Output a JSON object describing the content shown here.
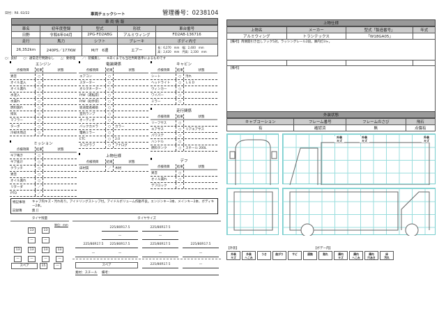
{
  "header": {
    "date": "日付：R6. 02/22",
    "title": "車両チェックシート",
    "mgmt_no": "管理番号：0238104"
  },
  "vehicle": {
    "title": "車 両 情 報",
    "h1": [
      "車名",
      "初年度登録",
      "型式",
      "形状",
      "車台番号"
    ],
    "r1": [
      "日野",
      "令和6年04月",
      "2PG-FD2ABG",
      "アルミウィング",
      "FD2AB-136716"
    ],
    "h2": [
      "走行",
      "馬力",
      "シフト",
      "ブレーキ",
      "ボディ内寸"
    ],
    "r2": [
      "26,352km",
      "240PS／177KW",
      "M/T　6速",
      "エアー"
    ],
    "dims": [
      "長：6,270　mm　幅：2,400　mm",
      "高：2,420　mm　門高：2,330　mm"
    ]
  },
  "legend_text": "○：良好　　○：通常走行問題なし　　△：要修理　　／：装備無し　　※あくまでも当社判断基準によるものです",
  "col_headers": [
    "点検項目",
    "結果",
    "状態"
  ],
  "sections": {
    "engine": {
      "title": "エンジン",
      "items": [
        [
          "異音",
          "○",
          ""
        ],
        [
          "オイル混入",
          "○",
          ""
        ],
        [
          "オイル漏れ",
          "○",
          ""
        ],
        [
          "水混入",
          "○",
          ""
        ],
        [
          "水漏れ",
          "○",
          ""
        ],
        [
          "燃料漏れ",
          "○",
          ""
        ],
        [
          "排気",
          "○",
          ""
        ],
        [
          "マフラー",
          "○",
          ""
        ],
        [
          "ターボ",
          "○",
          ""
        ],
        [
          "冷却水周辺",
          "○",
          ""
        ]
      ]
    },
    "electric": {
      "title": "電装関係",
      "items": [
        [
          "エアコン",
          "○",
          ""
        ],
        [
          "スターター",
          "○",
          ""
        ],
        [
          "オルタネーター",
          "○",
          ""
        ],
        [
          "P/W（運転席）",
          "○",
          ""
        ],
        [
          "P/W（助手席）",
          "○",
          ""
        ],
        [
          "坂道発進補助",
          "○",
          ""
        ],
        [
          "室内ランプ",
          "○",
          ""
        ],
        [
          "オーディオ",
          "○",
          ""
        ],
        [
          "バックカメラ",
          "○",
          "カラー"
        ],
        [
          "電格ミラー",
          "○",
          ""
        ],
        [
          "ETC",
          "○",
          "2.0"
        ],
        [
          "タコグラフ",
          "○",
          "アナログ"
        ]
      ]
    },
    "cabin": {
      "title": "キャビン",
      "items": [
        [
          "シート",
          "○",
          "汚れ"
        ],
        [
          "ヘッドライト",
          "○",
          "ＬＥＤ"
        ],
        [
          "ウィンカー",
          "○",
          ""
        ],
        [
          "ワイパー",
          "○",
          ""
        ],
        [
          "ミラー",
          "○",
          ""
        ]
      ]
    },
    "running": {
      "title": "走行関係",
      "items": [
        [
          "リーフサス",
          "○",
          ""
        ],
        [
          "エアサス",
          "○",
          "リアエアサス"
        ],
        [
          "パワステ",
          "○",
          ""
        ],
        [
          "ハンドル",
          "○",
          ""
        ],
        [
          "燃料タンク",
          "○",
          "スチール 200L"
        ]
      ]
    },
    "mission": {
      "title": "ミッション",
      "items": [
        [
          "ギア鳴き",
          "○",
          ""
        ],
        [
          "ギア抜け",
          "○",
          ""
        ],
        [
          "クラッチ",
          "○",
          ""
        ],
        [
          "異音",
          "○",
          ""
        ],
        [
          "オイル漏れ",
          "○",
          ""
        ],
        [
          "リターダ",
          "／",
          ""
        ],
        [
          "PTO",
          "／",
          ""
        ]
      ]
    },
    "body": {
      "title": "上物仕様",
      "items": [
        [
          "床材質",
          "／",
          "木材"
        ]
      ]
    },
    "diff": {
      "title": "デフ",
      "items": [
        [
          "異音",
          "○",
          ""
        ],
        [
          "オイル漏れ",
          "○",
          ""
        ],
        [
          "デフロック",
          "／",
          ""
        ]
      ]
    }
  },
  "notes": {
    "label": "特記事項",
    "text": "キャブ内キズ・汚れ有り。アイドリングストップ付。アイドルボリューム作動不良。エンジンキー3本、メインキー2本、ボディキー2本。",
    "record_label": "記録簿",
    "record_value": "無 []"
  },
  "tire_depth": {
    "title": "タイヤ残量",
    "unit": "単位：mm",
    "front": [
      "13",
      "13"
    ],
    "front2": [
      "—",
      "—"
    ],
    "rear": [
      "13",
      "13",
      "13",
      "13"
    ],
    "rear2": [
      "—",
      "—",
      "—",
      "—"
    ],
    "spare_label": "スペア",
    "spare": [
      "15",
      "—"
    ]
  },
  "tire_size": {
    "title": "タイヤサイズ",
    "front": [
      "225/80R17.5",
      "225/80R17.5"
    ],
    "front2": [
      "—",
      "—"
    ],
    "rear": [
      "225/80R17.5",
      "225/80R17.5",
      "225/80R17.5",
      "225/80R17.5"
    ],
    "rear2": [
      "—",
      "—",
      "—",
      "—"
    ],
    "spare_label": "スペア",
    "spare": [
      "225/80R17.5",
      "—"
    ],
    "material": "素材：スチール",
    "remark": "備考："
  },
  "upper": {
    "title": "上物仕様",
    "headers": [
      "上物名",
      "メーカー",
      "型式「製造番号」",
      "年式"
    ],
    "values": [
      "アルミウィング",
      "トランテックス",
      "「W18GA05」",
      ""
    ],
    "remark1": "【備考】両側開引き出しフック5対。ラッシングレール2段。庫内灯3ヶ。",
    "remark2": "【備考】"
  },
  "exterior": {
    "title": "外装状態",
    "headers": [
      "キャブコーション",
      "フレーム番号",
      "フレームのさび",
      "飛石"
    ],
    "values": [
      "有",
      "確認済",
      "無",
      "点傷有"
    ]
  },
  "diagram_tags": [
    "外装\nキズ",
    "外装\nキズ",
    "外装\nキズ",
    "外装\nキズ"
  ],
  "legend_ext_label": "【外装】",
  "legend_body_label": "【ボデー内】",
  "legend_items": [
    "外装\nキズ",
    "外装\nへこみ",
    "うき",
    "曲がり",
    "サビ",
    "腐蝕",
    "割れ",
    "庫内\nキズ",
    "庫内\nへこみ",
    "庫内\n穴あき",
    "床\n汚れ"
  ]
}
